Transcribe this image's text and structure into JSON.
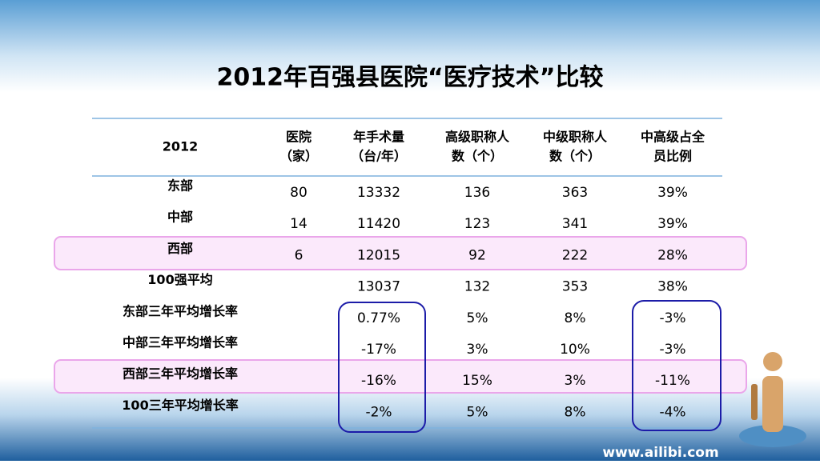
{
  "title": "2012年百强县医院“医疗技术”比较",
  "table": {
    "header": [
      [
        "2012"
      ],
      [
        "医院",
        "（家）"
      ],
      [
        "年手术量",
        "（台/年）"
      ],
      [
        "高级职称人",
        "数（个）"
      ],
      [
        "中级职称人",
        "数（个）"
      ],
      [
        "中高级占全",
        "员比例"
      ]
    ],
    "rows": [
      [
        "东部",
        "80",
        "13332",
        "136",
        "363",
        "39%"
      ],
      [
        "中部",
        "14",
        "11420",
        "123",
        "341",
        "39%"
      ],
      [
        "西部",
        "6",
        "12015",
        "92",
        "222",
        "28%"
      ],
      [
        "100强平均",
        null,
        "13037",
        "132",
        "353",
        "38%"
      ],
      [
        "东部三年平均增长率",
        null,
        "0.77%",
        "5%",
        "8%",
        "-3%"
      ],
      [
        "中部三年平均增长率",
        null,
        "-17%",
        "3%",
        "10%",
        "-3%"
      ],
      [
        "西部三年平均增长率",
        null,
        "-16%",
        "15%",
        "3%",
        "-11%"
      ],
      [
        "100三年平均增长率",
        null,
        "-2%",
        "5%",
        "8%",
        "-4%"
      ]
    ]
  },
  "footer": {
    "url": "www.ailibi.com"
  }
}
